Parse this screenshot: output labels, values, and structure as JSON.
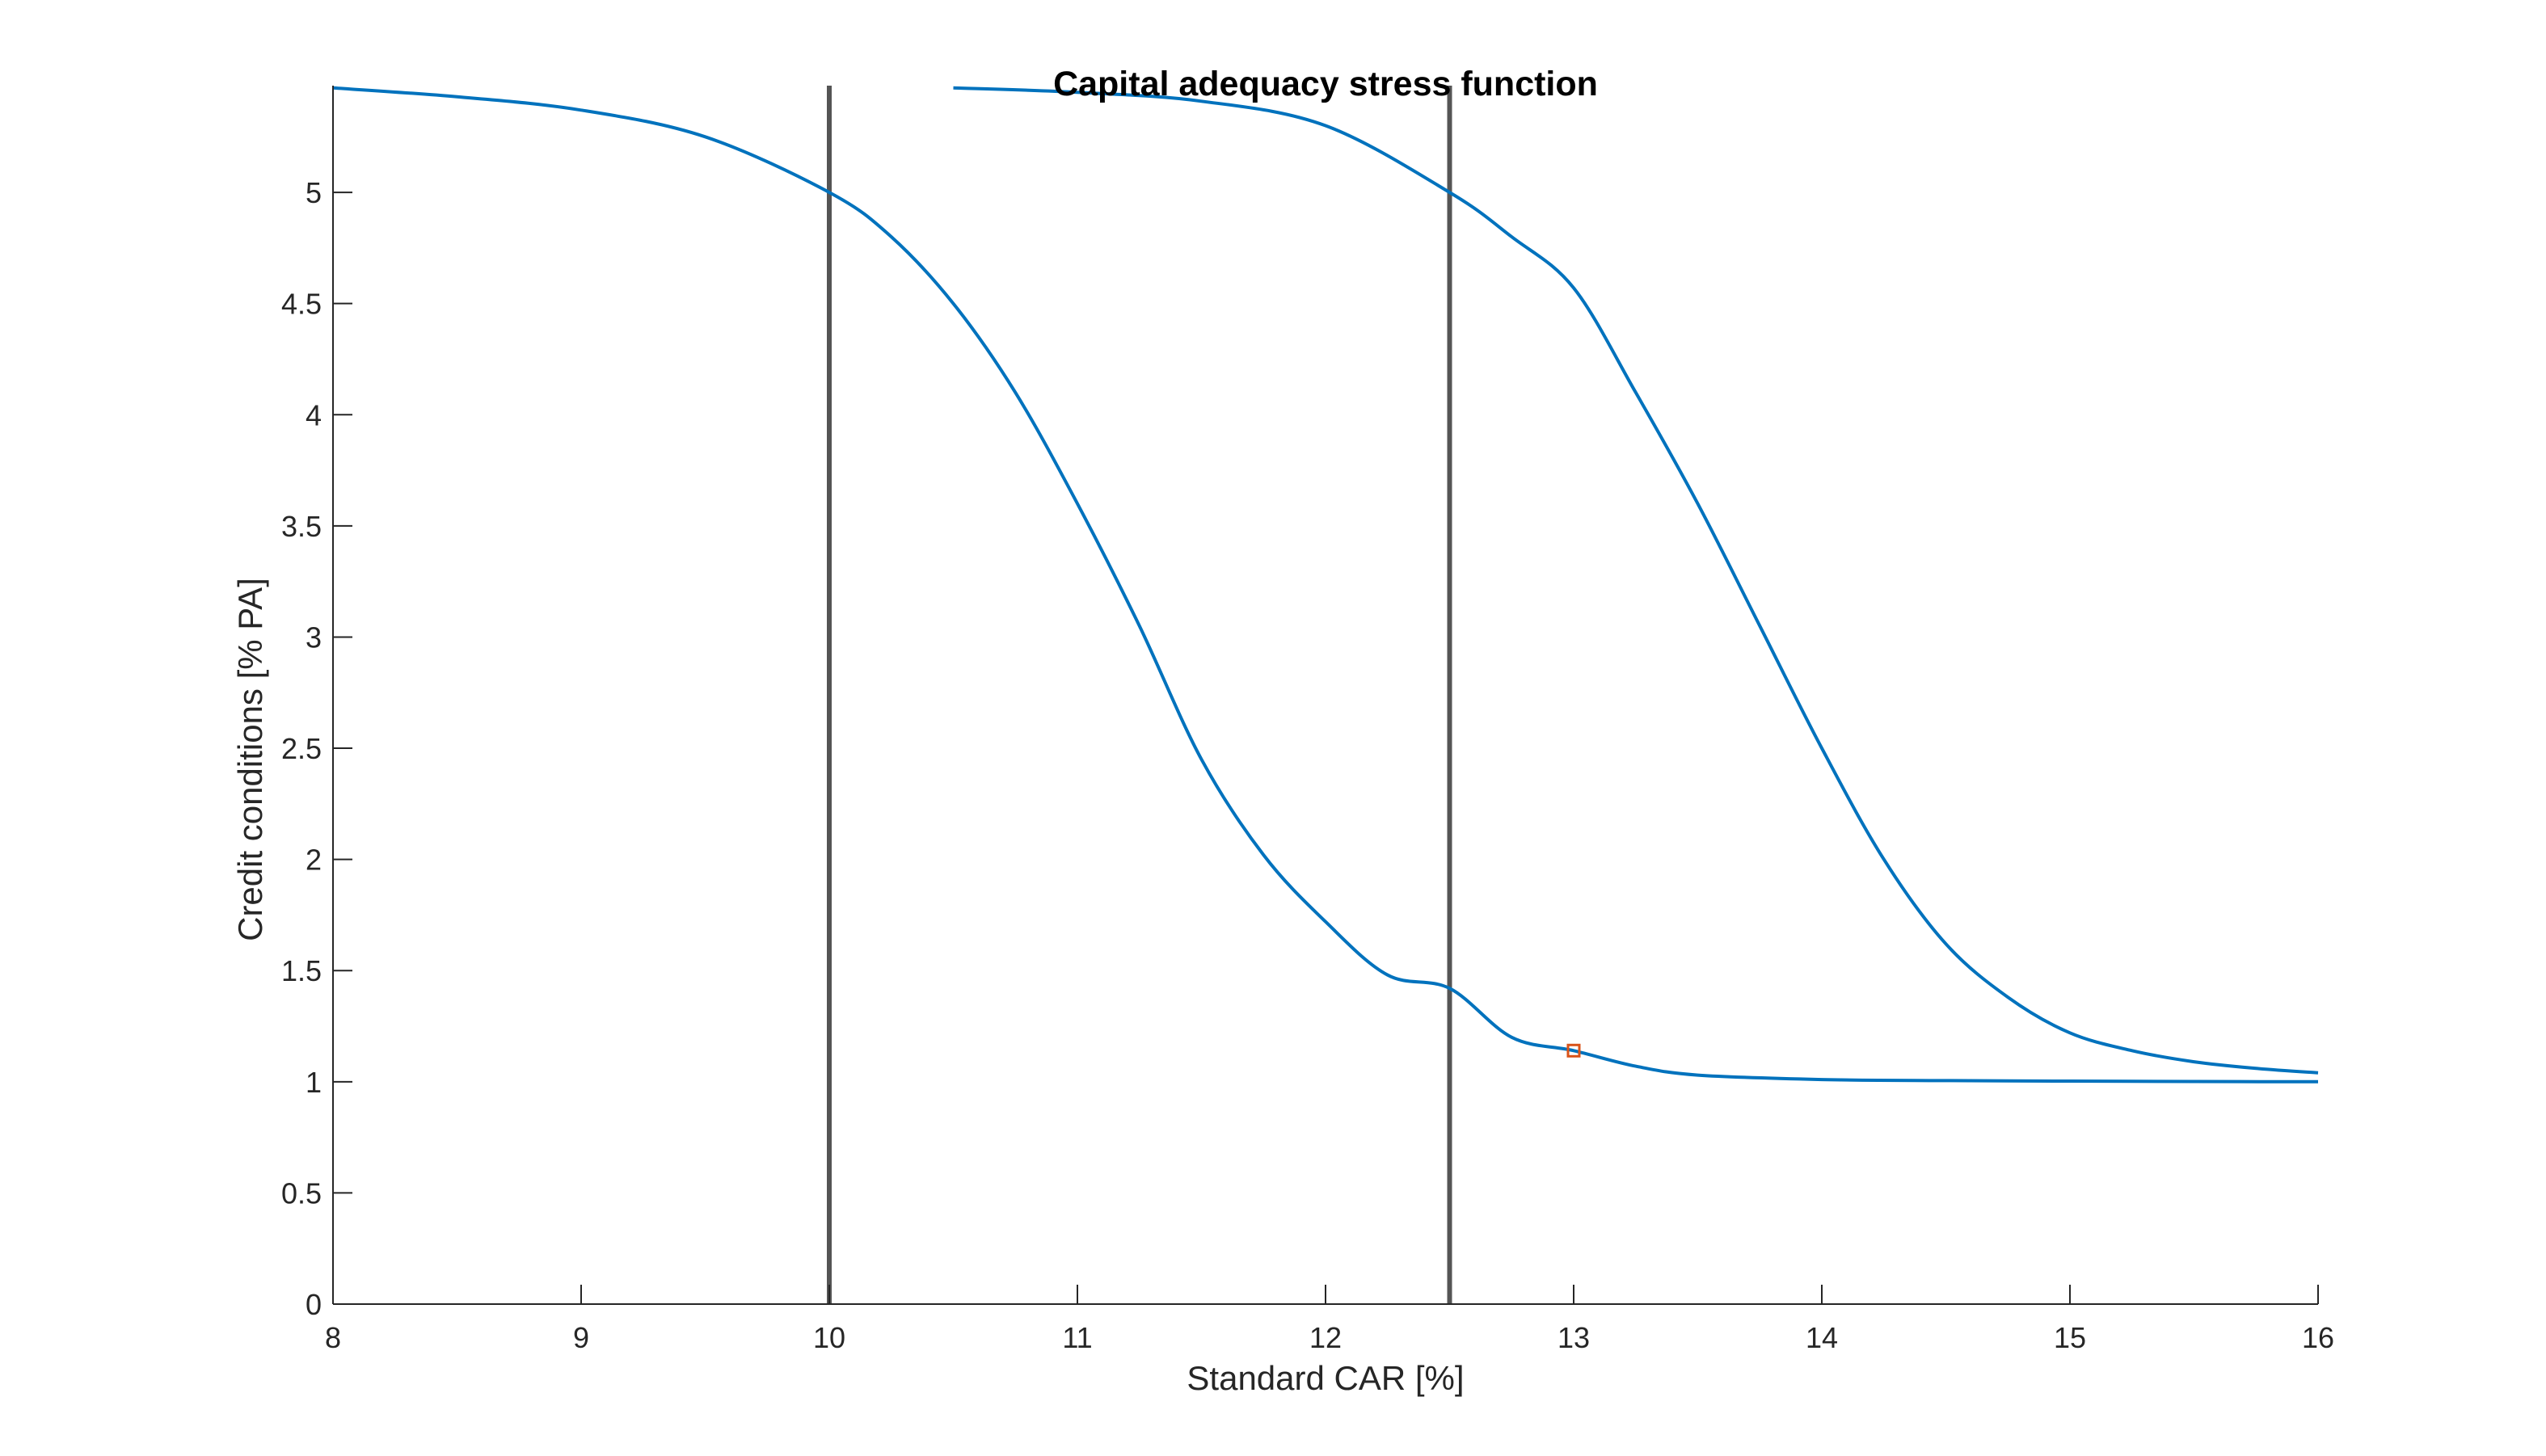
{
  "chart_data": {
    "type": "line",
    "title": "Capital adequacy stress function",
    "xlabel": "Standard CAR [%]",
    "ylabel": "Credit conditions [% PA]",
    "xlim": [
      8,
      16
    ],
    "ylim": [
      0,
      5.48
    ],
    "xticks": [
      8,
      9,
      10,
      11,
      12,
      13,
      14,
      15,
      16
    ],
    "yticks": [
      0,
      0.5,
      1,
      1.5,
      2,
      2.5,
      3,
      3.5,
      4,
      4.5,
      5
    ],
    "xtick_labels": [
      "8",
      "9",
      "10",
      "11",
      "12",
      "13",
      "14",
      "15",
      "16"
    ],
    "ytick_labels": [
      "0",
      "0.5",
      "1",
      "1.5",
      "2",
      "2.5",
      "3",
      "3.5",
      "4",
      "4.5",
      "5"
    ],
    "grid": false,
    "series": [
      {
        "color": "#0072BD",
        "x": [
          8,
          8.5,
          9,
          9.5,
          10,
          10.25,
          10.5,
          10.75,
          11,
          11.25,
          11.5,
          11.75,
          12,
          12.25,
          12.5,
          12.75,
          13,
          13.25,
          13.5,
          14,
          14.5,
          15,
          15.5,
          16
        ],
        "y": [
          5.47,
          5.43,
          5.37,
          5.25,
          5.0,
          4.8,
          4.5,
          4.1,
          3.6,
          3.05,
          2.45,
          2.02,
          1.72,
          1.48,
          1.42,
          1.2,
          1.14,
          1.07,
          1.03,
          1.01,
          1.005,
          1.003,
          1.001,
          1.0
        ]
      },
      {
        "color": "#0072BD",
        "x": [
          10.5,
          11,
          11.5,
          12,
          12.5,
          12.75,
          13,
          13.25,
          13.5,
          13.75,
          14,
          14.25,
          14.5,
          14.75,
          15,
          15.25,
          15.5,
          15.75,
          16
        ],
        "y": [
          5.47,
          5.45,
          5.41,
          5.3,
          5.0,
          4.8,
          4.57,
          4.1,
          3.6,
          3.05,
          2.5,
          2.0,
          1.62,
          1.38,
          1.22,
          1.14,
          1.09,
          1.06,
          1.04
        ]
      }
    ],
    "vertical_lines": [
      {
        "x": 10,
        "color": "#555555"
      },
      {
        "x": 12.5,
        "color": "#555555"
      }
    ],
    "markers": [
      {
        "x": 13,
        "y": 1.14,
        "shape": "square",
        "color": "#D95319"
      }
    ]
  }
}
